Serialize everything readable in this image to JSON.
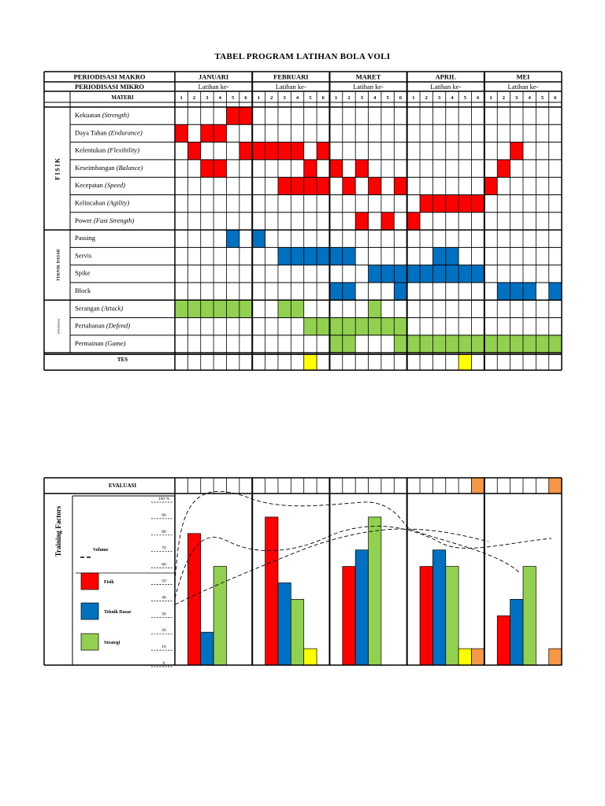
{
  "title": "TABEL PROGRAM LATIHAN BOLA VOLI",
  "header": {
    "macro_label": "PERIODISASI MAKRO",
    "micro_label": "PERIODISASI MIKRO",
    "materi_label": "MATERI",
    "latihan_label": "Latihan ke-",
    "months": [
      "JANUARI",
      "FEBRUARI",
      "MARET",
      "APRIL",
      "MEI"
    ],
    "week_numbers": [
      "1",
      "2",
      "3",
      "4",
      "5",
      "6"
    ]
  },
  "groups": [
    {
      "label": "FISIK",
      "rows": [
        0,
        6
      ]
    },
    {
      "label": "TEKNIK DASAR",
      "rows": [
        7,
        10
      ]
    },
    {
      "label": "STRATEGI",
      "rows": [
        11,
        13
      ]
    }
  ],
  "rows": [
    {
      "name": "Kekuatan",
      "en": "Strength",
      "color": "red",
      "cells": [
        4,
        5
      ]
    },
    {
      "name": "Daya Tahan",
      "en": "Endurance",
      "color": "red",
      "cells": [
        0,
        2,
        3
      ]
    },
    {
      "name": "Kelentukan",
      "en": "Flexibility",
      "color": "red",
      "cells": [
        1,
        5,
        6,
        7,
        8,
        9,
        11,
        26
      ]
    },
    {
      "name": "Keseimbangan",
      "en": "Balance",
      "color": "red",
      "cells": [
        2,
        3,
        10,
        12,
        14,
        25
      ]
    },
    {
      "name": "Kecepatan",
      "en": "Speed",
      "color": "red",
      "cells": [
        8,
        9,
        10,
        11,
        13,
        15,
        17,
        24
      ]
    },
    {
      "name": "Kelincahan",
      "en": "Agility",
      "color": "red",
      "cells": [
        19,
        20,
        21,
        22,
        23
      ]
    },
    {
      "name": "Power",
      "en": "Fast Strength",
      "color": "red",
      "cells": [
        14,
        16,
        18
      ]
    },
    {
      "name": "Passing",
      "en": "",
      "color": "blue",
      "cells": [
        4,
        6
      ]
    },
    {
      "name": "Servis",
      "en": "",
      "color": "blue",
      "cells": [
        8,
        9,
        10,
        11,
        12,
        13,
        20,
        21
      ]
    },
    {
      "name": "Spike",
      "en": "",
      "color": "blue",
      "cells": [
        15,
        16,
        17,
        18,
        19,
        20,
        21,
        22,
        23
      ]
    },
    {
      "name": "Block",
      "en": "",
      "color": "blue",
      "cells": [
        12,
        13,
        17,
        25,
        26,
        27,
        29
      ]
    },
    {
      "name": "Serangan",
      "en": "Attack",
      "color": "green",
      "cells": [
        0,
        1,
        2,
        3,
        4,
        5,
        8,
        9,
        15
      ]
    },
    {
      "name": "Pertahanan",
      "en": "Defend",
      "color": "green",
      "cells": [
        10,
        11,
        12,
        13,
        14,
        15,
        16,
        17
      ]
    },
    {
      "name": "Permainan",
      "en": "Game",
      "color": "green",
      "cells": [
        12,
        13,
        17,
        18,
        19,
        20,
        21,
        22,
        23,
        24,
        25,
        26,
        27,
        28,
        29
      ]
    }
  ],
  "test_row": {
    "label": "TES",
    "color": "yellow",
    "cells": [
      10,
      22
    ]
  },
  "evaluation": {
    "label": "EVALUASI",
    "color": "orange",
    "cells": [
      23,
      29
    ]
  },
  "chart_data": {
    "type": "bar",
    "title": "Training Factors",
    "ylim": [
      0,
      100
    ],
    "y_ticks": [
      "0",
      "10",
      "20",
      "30",
      "40",
      "50",
      "60",
      "70",
      "80",
      "90",
      "100 %"
    ],
    "categories": [
      "JANUARI",
      "FEBRUARI",
      "MARET",
      "APRIL",
      "MEI"
    ],
    "series": [
      {
        "name": "Fisik",
        "color": "#ff0000",
        "values": [
          80,
          90,
          60,
          60,
          30
        ]
      },
      {
        "name": "Teknik Dasar",
        "color": "#0070c0",
        "values": [
          20,
          50,
          70,
          70,
          40
        ]
      },
      {
        "name": "Strategi",
        "color": "#92d050",
        "values": [
          60,
          40,
          90,
          60,
          60
        ]
      }
    ],
    "tes_values": [
      0,
      10,
      0,
      10,
      0
    ],
    "evaluasi_values": [
      0,
      0,
      0,
      10,
      10
    ],
    "legend": [
      {
        "name": "Volume",
        "kind": "line"
      },
      {
        "name": "Fisik",
        "color": "#ff0000"
      },
      {
        "name": "Teknik Dasar",
        "color": "#0070c0"
      },
      {
        "name": "Strategi",
        "color": "#92d050"
      }
    ]
  },
  "colors": {
    "red": "#ff0000",
    "blue": "#0070c0",
    "green": "#92d050",
    "yellow": "#ffff00",
    "orange": "#f79646"
  }
}
